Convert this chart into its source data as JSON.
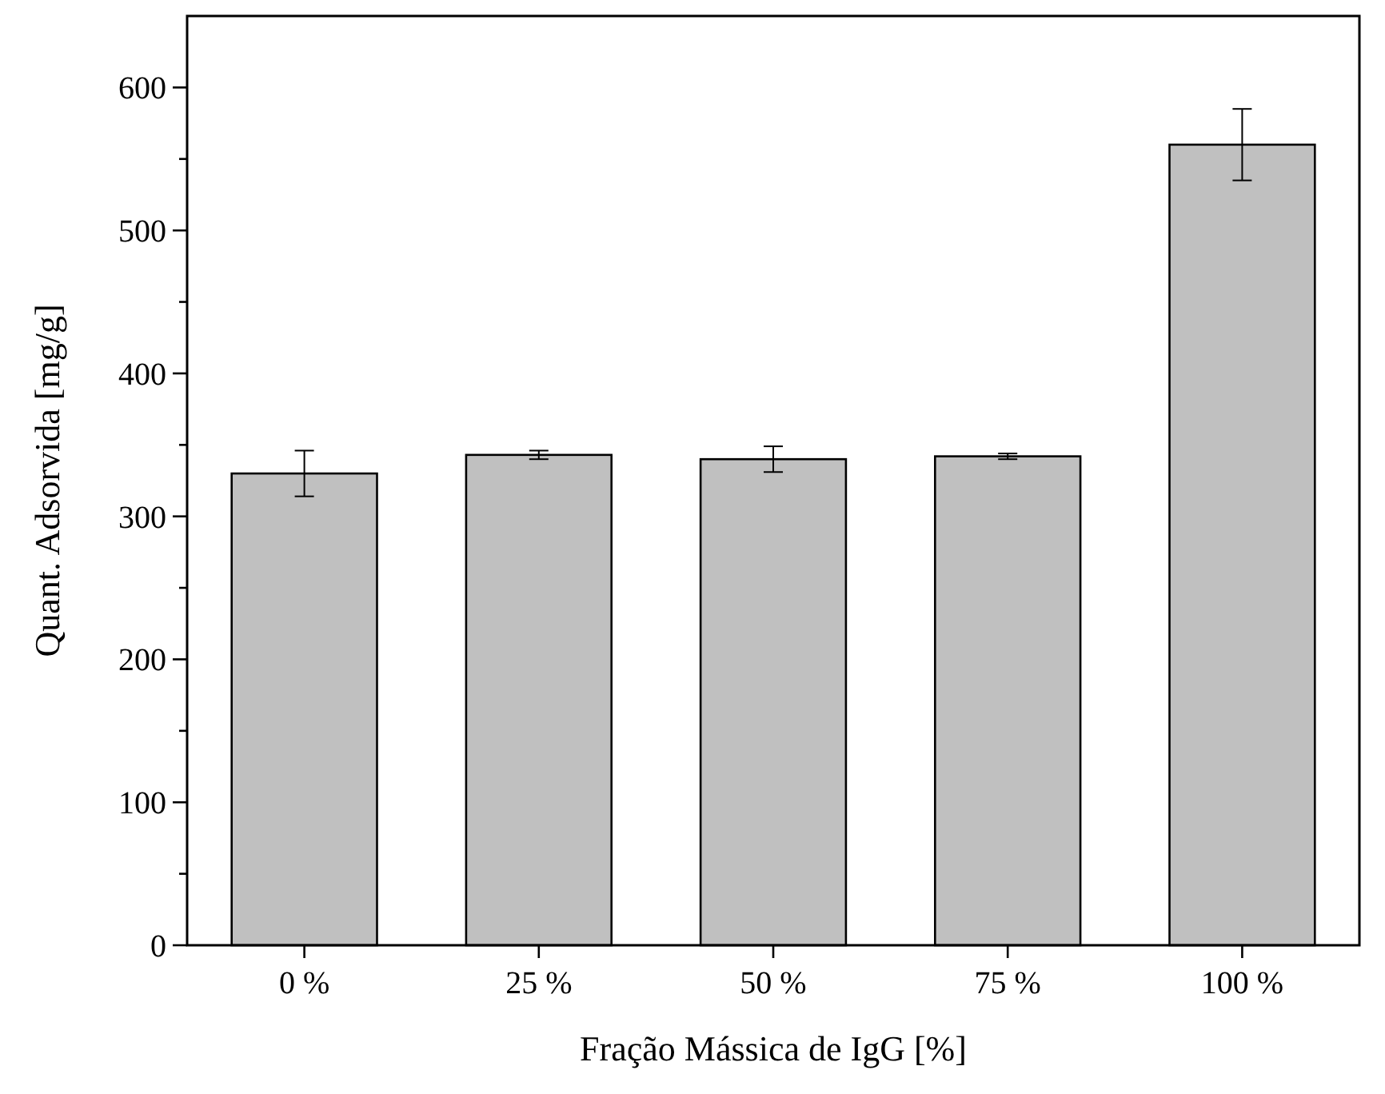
{
  "chart_data": {
    "type": "bar",
    "xlabel": "Fração Mássica de IgG [%]",
    "ylabel": "Quant. Adsorvida [mg/g]",
    "categories": [
      "0 %",
      "25 %",
      "50 %",
      "75 %",
      "100 %"
    ],
    "values": [
      330,
      343,
      340,
      342,
      560
    ],
    "errors": [
      16,
      3,
      9,
      2,
      25
    ],
    "color": "#c0c0c0",
    "ylim": [
      0,
      650
    ],
    "yticks": [
      0,
      {
        "value": 50,
        "label": null
      },
      100,
      {
        "value": 150,
        "label": null
      },
      200,
      {
        "value": 250,
        "label": null
      },
      300,
      {
        "value": 350,
        "label": null
      },
      400,
      {
        "value": 450,
        "label": null
      },
      500,
      {
        "value": 550,
        "label": null
      },
      600
    ],
    "grid": false
  }
}
